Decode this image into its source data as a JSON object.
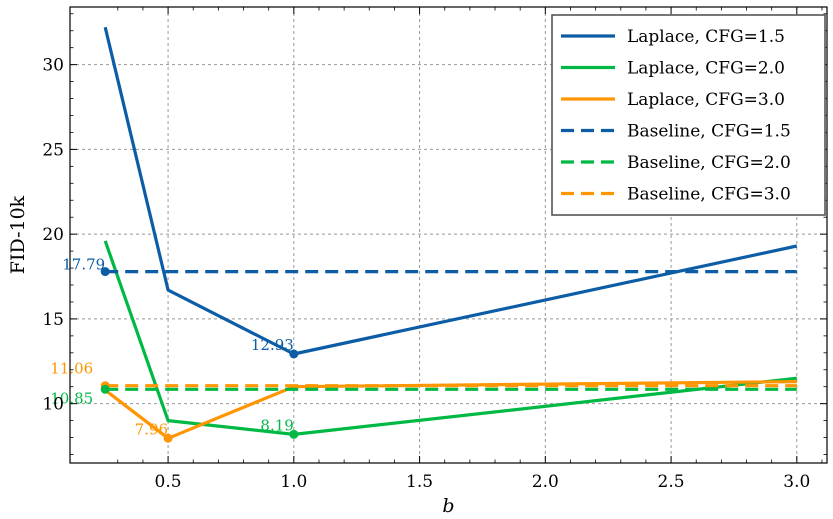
{
  "chart_data": {
    "type": "line",
    "xlabel": "b",
    "ylabel": "FID-10k",
    "xlim": [
      0.11,
      3.12
    ],
    "ylim": [
      6.5,
      33.4
    ],
    "xticks": [
      0.5,
      1.0,
      1.5,
      2.0,
      2.5,
      3.0
    ],
    "xtick_labels": [
      "0.5",
      "1.0",
      "1.5",
      "2.0",
      "2.5",
      "3.0"
    ],
    "yticks": [
      10,
      15,
      20,
      25,
      30
    ],
    "ytick_labels": [
      "10",
      "15",
      "20",
      "25",
      "30"
    ],
    "grid": true,
    "legend_position": "top-right",
    "series": [
      {
        "name": "Laplace, CFG=1.5",
        "style": "solid",
        "color": "#0C5DA5",
        "x": [
          0.25,
          0.5,
          1.0,
          3.0
        ],
        "y": [
          32.2,
          16.7,
          12.93,
          19.3
        ]
      },
      {
        "name": "Laplace, CFG=2.0",
        "style": "solid",
        "color": "#00B945",
        "x": [
          0.25,
          0.5,
          1.0,
          3.0
        ],
        "y": [
          19.6,
          9.0,
          8.19,
          11.5
        ]
      },
      {
        "name": "Laplace, CFG=3.0",
        "style": "solid",
        "color": "#FF9500",
        "x": [
          0.25,
          0.5,
          1.0,
          3.0
        ],
        "y": [
          10.8,
          7.96,
          11.0,
          11.3
        ]
      },
      {
        "name": "Baseline, CFG=1.5",
        "style": "dashed",
        "color": "#0C5DA5",
        "x": [
          0.25,
          3.0
        ],
        "y": [
          17.79,
          17.79
        ]
      },
      {
        "name": "Baseline, CFG=2.0",
        "style": "dashed",
        "color": "#00B945",
        "x": [
          0.25,
          3.0
        ],
        "y": [
          10.85,
          10.85
        ]
      },
      {
        "name": "Baseline, CFG=3.0",
        "style": "dashed",
        "color": "#FF9500",
        "x": [
          0.25,
          3.0
        ],
        "y": [
          11.06,
          11.06
        ]
      }
    ],
    "annotations": [
      {
        "text": "17.79",
        "x": 0.25,
        "y": 17.79,
        "color": "#0C5DA5",
        "anchor": "end",
        "dx": 0,
        "dy": -2
      },
      {
        "text": "12.93",
        "x": 1.0,
        "y": 12.93,
        "color": "#0C5DA5",
        "anchor": "end",
        "dx": 0,
        "dy": -4
      },
      {
        "text": "11.06",
        "x": 0.25,
        "y": 11.06,
        "color": "#FF9500",
        "anchor": "end",
        "dx": -12,
        "dy": -12
      },
      {
        "text": "10.85",
        "x": 0.25,
        "y": 10.85,
        "color": "#00B945",
        "anchor": "end",
        "dx": -12,
        "dy": 14
      },
      {
        "text": "7.96",
        "x": 0.5,
        "y": 7.96,
        "color": "#FF9500",
        "anchor": "end",
        "dx": 0,
        "dy": -4
      },
      {
        "text": "8.19",
        "x": 1.0,
        "y": 8.19,
        "color": "#00B945",
        "anchor": "end",
        "dx": 0,
        "dy": -4
      }
    ],
    "markers": [
      {
        "x": 0.25,
        "y": 17.79,
        "color": "#0C5DA5"
      },
      {
        "x": 1.0,
        "y": 12.93,
        "color": "#0C5DA5"
      },
      {
        "x": 0.25,
        "y": 11.06,
        "color": "#FF9500"
      },
      {
        "x": 0.25,
        "y": 10.85,
        "color": "#00B945"
      },
      {
        "x": 0.5,
        "y": 7.96,
        "color": "#FF9500"
      },
      {
        "x": 1.0,
        "y": 8.19,
        "color": "#00B945"
      }
    ]
  }
}
